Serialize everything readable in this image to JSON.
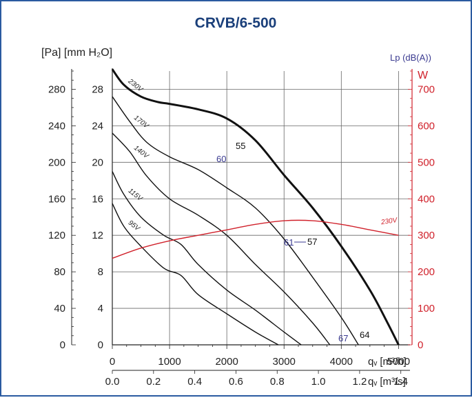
{
  "title": "CRVB/6-500",
  "chart_data": {
    "type": "line",
    "title": "CRVB/6-500",
    "left_outer_axis": {
      "label": "[Pa]",
      "ticks": [
        0,
        40,
        80,
        120,
        160,
        200,
        240,
        280
      ],
      "range": [
        0,
        300
      ]
    },
    "left_inner_axis": {
      "label": "[mm H₂O]",
      "ticks": [
        0,
        4,
        8,
        12,
        16,
        20,
        24,
        28
      ],
      "range": [
        0,
        30
      ]
    },
    "right_axis": {
      "label": "W",
      "ticks": [
        0,
        100,
        200,
        300,
        400,
        500,
        600,
        700
      ],
      "range": [
        0,
        750
      ],
      "color": "#d0202a"
    },
    "sound_axis_label": "Lp (dB(A))",
    "x_axis_primary": {
      "unit": "qᵥ [m³/h]",
      "ticks": [
        "0",
        "1000",
        "2000",
        "3000",
        "4000",
        "5000"
      ],
      "range": [
        0,
        5200
      ]
    },
    "x_axis_secondary": {
      "unit": "qᵥ [m³/s]",
      "ticks": [
        "0.0",
        "0.2",
        "0.4",
        "0.6",
        "0.8",
        "1.0",
        "1.2",
        "1.4"
      ]
    },
    "grid": true,
    "series": [
      {
        "name": "230V",
        "kind": "pressure",
        "bold": true,
        "color": "#111111",
        "x": [
          0,
          200,
          500,
          800,
          1000,
          1500,
          2000,
          2500,
          3000,
          3500,
          4000,
          4500,
          4800,
          5000
        ],
        "y": [
          302,
          285,
          272,
          266,
          264,
          258,
          248,
          224,
          186,
          150,
          108,
          60,
          25,
          0
        ]
      },
      {
        "name": "170V",
        "kind": "pressure",
        "bold": false,
        "color": "#111111",
        "x": [
          0,
          300,
          600,
          1000,
          1500,
          2000,
          2500,
          3000,
          3500,
          4000,
          4300
        ],
        "y": [
          272,
          245,
          222,
          206,
          192,
          172,
          150,
          116,
          74,
          30,
          0
        ]
      },
      {
        "name": "140V",
        "kind": "pressure",
        "bold": false,
        "color": "#111111",
        "x": [
          0,
          300,
          600,
          1000,
          1500,
          2000,
          2500,
          3000,
          3500,
          3800
        ],
        "y": [
          232,
          212,
          185,
          160,
          142,
          120,
          88,
          58,
          24,
          0
        ]
      },
      {
        "name": "115V",
        "kind": "pressure",
        "bold": false,
        "color": "#111111",
        "x": [
          0,
          200,
          500,
          900,
          1200,
          1500,
          2000,
          2500,
          3000,
          3300
        ],
        "y": [
          190,
          165,
          140,
          120,
          110,
          88,
          60,
          38,
          14,
          0
        ]
      },
      {
        "name": "95V",
        "kind": "pressure",
        "bold": false,
        "color": "#111111",
        "x": [
          0,
          200,
          500,
          900,
          1200,
          1500,
          2000,
          2500,
          2900
        ],
        "y": [
          155,
          130,
          108,
          84,
          76,
          55,
          34,
          14,
          0
        ]
      },
      {
        "name": "230V",
        "kind": "power",
        "bold": false,
        "color": "#d0202a",
        "x": [
          0,
          500,
          1000,
          1500,
          2000,
          2500,
          3000,
          3500,
          4000,
          4500,
          5000
        ],
        "y": [
          237,
          265,
          285,
          300,
          315,
          330,
          340,
          340,
          330,
          315,
          300
        ]
      }
    ],
    "sound_annotations": [
      {
        "text": "60",
        "color": "#3a3a90"
      },
      {
        "text": "55",
        "color": "#111111"
      },
      {
        "text": "61",
        "color": "#3a3a90"
      },
      {
        "text": "57",
        "color": "#111111"
      },
      {
        "text": "67",
        "color": "#3a3a90"
      },
      {
        "text": "64",
        "color": "#111111"
      }
    ]
  },
  "colors": {
    "border": "#2a5aa0",
    "title": "#1a3f7a",
    "red": "#d0202a",
    "grid": "#666666"
  }
}
